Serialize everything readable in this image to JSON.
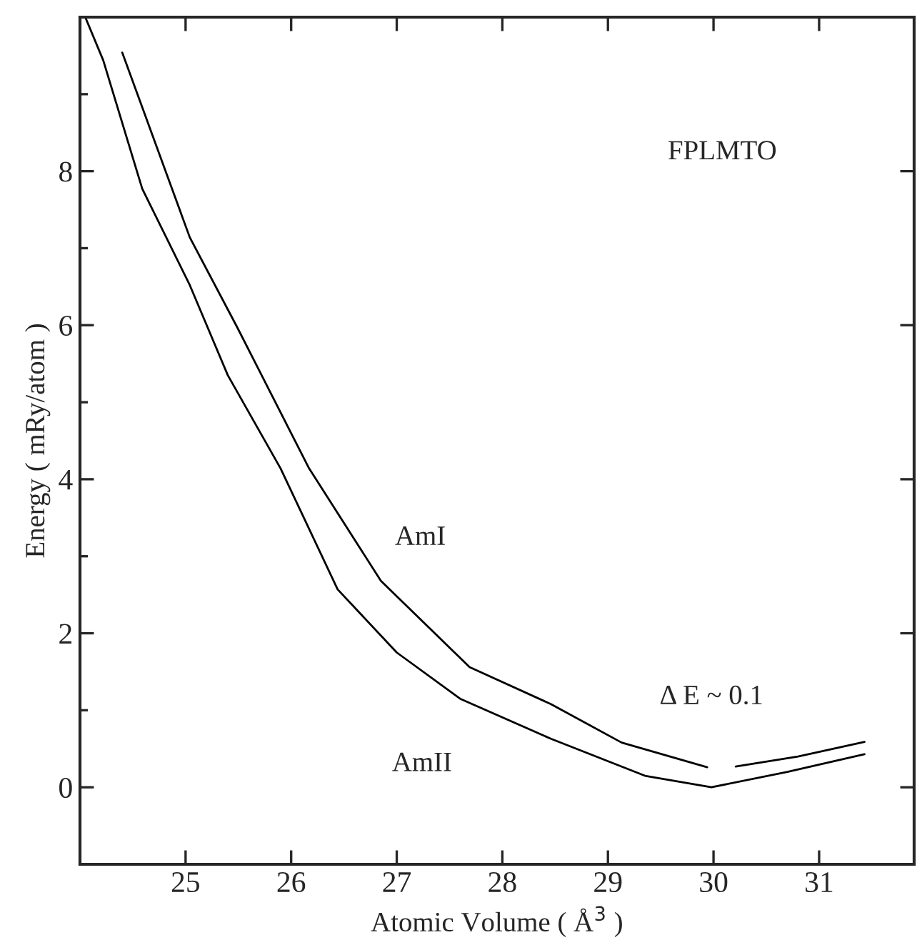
{
  "chart_data": {
    "type": "line",
    "xlabel": "Atomic Volume ( Å$^{3}$ )",
    "ylabel": "Energy ( mRy/atom )",
    "series": [
      {
        "color": "#000000",
        "x": [
          24.05,
          24.22,
          24.59,
          25.04,
          25.4,
          25.9,
          26.44,
          27.0,
          27.6,
          28.46,
          29.35,
          29.98,
          30.7,
          31.43
        ],
        "values": [
          10.0,
          9.44,
          7.77,
          6.52,
          5.35,
          4.14,
          2.57,
          1.75,
          1.15,
          0.63,
          0.15,
          0.0,
          0.2,
          0.43
        ]
      },
      {
        "color": "#000000",
        "x": [
          24.4,
          25.04,
          25.49,
          26.17,
          26.85,
          27.69,
          28.46,
          29.13,
          29.94,
          30.08,
          30.21,
          30.8,
          31.43
        ],
        "values": [
          9.54,
          7.14,
          5.97,
          4.14,
          2.68,
          1.56,
          1.08,
          0.58,
          0.26,
          null,
          0.27,
          0.4,
          0.59
        ]
      }
    ],
    "annotations": [
      "FPLMTO",
      "AmI",
      "AmII",
      "Δ E ~ 0.1"
    ],
    "xlim": [
      24.0,
      31.9
    ],
    "ylim": [
      -1,
      10
    ],
    "xticks": [
      25,
      26,
      27,
      28,
      29,
      30,
      31
    ],
    "yticks": [
      0,
      {
        "value": 1,
        "label": null
      },
      2,
      {
        "value": 3,
        "label": null
      },
      4,
      {
        "value": 5,
        "label": null
      },
      6,
      {
        "value": 7,
        "label": null
      },
      8,
      {
        "value": 9,
        "label": null
      }
    ],
    "grid": false,
    "marker": "none",
    "line_style": "solid"
  }
}
